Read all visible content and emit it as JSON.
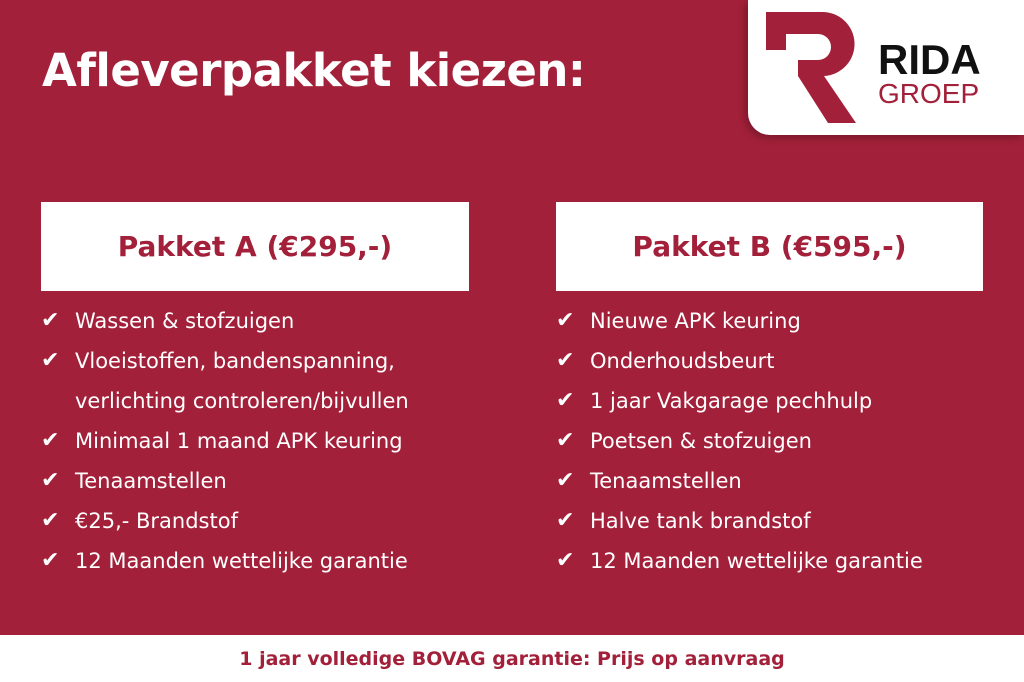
{
  "title": "Afleverpakket kiezen:",
  "logo": {
    "line1": "RIDA",
    "line2": "GROEP"
  },
  "colors": {
    "background": "#a3203a",
    "accent": "#a3203a"
  },
  "packages": [
    {
      "name": "Pakket A (€295,-)",
      "items": [
        "Wassen & stofzuigen",
        "Vloeistoffen, bandenspanning, verlichting controleren/bijvullen",
        "Minimaal 1 maand APK keuring",
        "Tenaamstellen",
        "€25,- Brandstof",
        "12 Maanden wettelijke garantie"
      ]
    },
    {
      "name": "Pakket B (€595,-)",
      "items": [
        "Nieuwe APK keuring",
        "Onderhoudsbeurt",
        "1 jaar Vakgarage pechhulp",
        "Poetsen & stofzuigen",
        "Tenaamstellen",
        "Halve tank brandstof",
        "12 Maanden wettelijke garantie"
      ]
    }
  ],
  "check_icon": "✔",
  "footer": "1 jaar volledige BOVAG garantie: Prijs op aanvraag"
}
